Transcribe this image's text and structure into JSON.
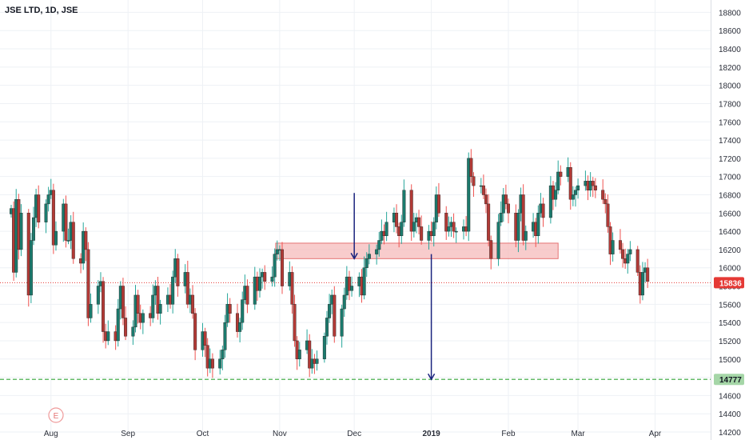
{
  "header": {
    "symbol_label": "JSE LTD, 1D, JSE"
  },
  "colors": {
    "up": "#26a69a",
    "up_fill": "#1b7a6d",
    "down": "#ef5350",
    "down_fill": "#b23a36",
    "grid": "#eef1f5",
    "price_line": "#e53935",
    "support_line": "#66bb6a",
    "zone_fill": "#f5b7b7",
    "zone_border": "#e57373",
    "arrow": "#1a237e",
    "axis_text": "#2a2e39"
  },
  "event_marker": {
    "label": "E"
  },
  "chart_data": {
    "type": "candlestick",
    "title": "JSE LTD, 1D, JSE",
    "ylim": [
      14200,
      18900
    ],
    "y_ticks": [
      14200,
      14400,
      14600,
      14800,
      15000,
      15200,
      15400,
      15600,
      15800,
      16000,
      16200,
      16400,
      16600,
      16800,
      17000,
      17200,
      17400,
      17600,
      17800,
      18000,
      18200,
      18400,
      18600,
      18800
    ],
    "x_ticks": [
      {
        "label": "Aug",
        "date": "2018-08-01",
        "bold": false
      },
      {
        "label": "Sep",
        "date": "2018-09-01",
        "bold": false
      },
      {
        "label": "Oct",
        "date": "2018-10-01",
        "bold": false
      },
      {
        "label": "Nov",
        "date": "2018-11-01",
        "bold": false
      },
      {
        "label": "Dec",
        "date": "2018-12-01",
        "bold": false
      },
      {
        "label": "2019",
        "date": "2019-01-01",
        "bold": true
      },
      {
        "label": "Feb",
        "date": "2019-02-01",
        "bold": false
      },
      {
        "label": "Mar",
        "date": "2019-03-01",
        "bold": false
      },
      {
        "label": "Apr",
        "date": "2019-04-01",
        "bold": false
      }
    ],
    "series": [
      {
        "name": "JSE LTD",
        "values": [
          16650,
          15950,
          16750,
          16200,
          16600,
          15700,
          16300,
          16550,
          16800,
          16500,
          16700,
          16800,
          16850,
          16250,
          16400,
          16700,
          16300,
          16300,
          16500,
          16100,
          16050,
          16400,
          16200,
          15450,
          15600,
          15800,
          15850,
          15300,
          15200,
          15300,
          15200,
          15550,
          15800,
          15450,
          15250,
          15350,
          15700,
          15500,
          15400,
          15500,
          15450,
          15700,
          15800,
          15500,
          15600,
          15700,
          15600,
          15900,
          16100,
          15800,
          15950,
          15600,
          15700,
          15500,
          15100,
          15300,
          15150,
          14900,
          15000,
          14900,
          15000,
          15100,
          15400,
          15600,
          15500,
          15300,
          15400,
          15650,
          15800,
          15600,
          15900,
          15750,
          15900,
          15950,
          15850,
          15900,
          16150,
          16200,
          16200,
          15800,
          15950,
          15600,
          15200,
          15000,
          15100,
          15200,
          14900,
          15000,
          14950,
          15000,
          15250,
          15450,
          15600,
          15700,
          15250,
          15550,
          15700,
          15900,
          15750,
          15800,
          15900,
          15700,
          16000,
          16100,
          16150,
          16200,
          16300,
          16400,
          16350,
          16500,
          16600,
          16450,
          16350,
          16500,
          16850,
          16400,
          16500,
          16550,
          16450,
          16300,
          16400,
          16350,
          16500,
          16800,
          16600,
          16400,
          16450,
          16500,
          16400,
          16400,
          16450,
          16400,
          17200,
          17000,
          16900,
          16900,
          16800,
          16700,
          16300,
          16100,
          16500,
          16600,
          16800,
          16700,
          16600,
          16300,
          16600,
          16800,
          16300,
          16400,
          16500,
          16350,
          16600,
          16700,
          16550,
          16900,
          16750,
          16850,
          17050,
          17000,
          17100,
          16750,
          16800,
          16850,
          16900,
          16950,
          16850,
          16950,
          16900,
          16850,
          16750,
          16700,
          16450,
          16150,
          16300,
          16200,
          16100,
          16050,
          16150,
          16200,
          15950,
          15700,
          15950,
          16000,
          15850
        ]
      }
    ],
    "current_price": 15836,
    "support_level": 14777,
    "resistance_zone": [
      16100,
      16270
    ],
    "annotations": [
      {
        "type": "arrow",
        "from": 16820,
        "to": 16100
      },
      {
        "type": "arrow",
        "from": 16150,
        "to": 14777
      }
    ]
  }
}
